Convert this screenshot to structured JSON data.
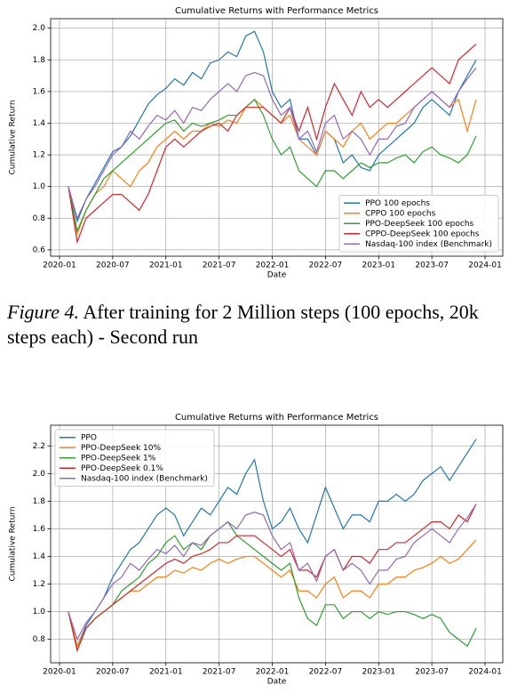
{
  "chart_data": [
    {
      "type": "line",
      "title": "Cumulative Returns with Performance Metrics",
      "xlabel": "Date",
      "ylabel": "Cumulative Return",
      "x": [
        "2020-02",
        "2020-03",
        "2020-04",
        "2020-05",
        "2020-06",
        "2020-07",
        "2020-08",
        "2020-09",
        "2020-10",
        "2020-11",
        "2020-12",
        "2021-01",
        "2021-02",
        "2021-03",
        "2021-04",
        "2021-05",
        "2021-06",
        "2021-07",
        "2021-08",
        "2021-09",
        "2021-10",
        "2021-11",
        "2021-12",
        "2022-01",
        "2022-02",
        "2022-03",
        "2022-04",
        "2022-05",
        "2022-06",
        "2022-07",
        "2022-08",
        "2022-09",
        "2022-10",
        "2022-11",
        "2022-12",
        "2023-01",
        "2023-02",
        "2023-03",
        "2023-04",
        "2023-05",
        "2023-06",
        "2023-07",
        "2023-08",
        "2023-09",
        "2023-10",
        "2023-11",
        "2023-12"
      ],
      "xlim": [
        "2019-12",
        "2024-03"
      ],
      "xticks": [
        "2020-01",
        "2020-07",
        "2021-01",
        "2021-07",
        "2022-01",
        "2022-07",
        "2023-01",
        "2023-07",
        "2024-01"
      ],
      "ylim": [
        0.56,
        2.06
      ],
      "yticks": [
        0.6,
        0.8,
        {
          "value": 1,
          "label": "1.0"
        },
        1.2,
        1.4,
        1.6,
        1.8,
        {
          "value": 2,
          "label": "2.0"
        }
      ],
      "grid": true,
      "legend": "lower right",
      "series": [
        {
          "name": "PPO 100 epochs",
          "color": "#1f77b4",
          "values": [
            1.0,
            0.78,
            0.92,
            1.02,
            1.12,
            1.22,
            1.25,
            1.32,
            1.42,
            1.52,
            1.58,
            1.62,
            1.68,
            1.64,
            1.72,
            1.68,
            1.78,
            1.8,
            1.85,
            1.82,
            1.95,
            1.98,
            1.85,
            1.6,
            1.5,
            1.55,
            1.3,
            1.3,
            1.2,
            1.35,
            1.3,
            1.15,
            1.2,
            1.12,
            1.1,
            1.2,
            1.25,
            1.3,
            1.35,
            1.4,
            1.5,
            1.55,
            1.5,
            1.45,
            1.6,
            1.7,
            1.8
          ]
        },
        {
          "name": "CPPO 100 epochs",
          "color": "#ff7f0e",
          "values": [
            1.0,
            0.7,
            0.85,
            0.95,
            1.0,
            1.1,
            1.05,
            1.0,
            1.1,
            1.15,
            1.25,
            1.3,
            1.35,
            1.3,
            1.35,
            1.35,
            1.4,
            1.38,
            1.42,
            1.4,
            1.5,
            1.55,
            1.5,
            1.45,
            1.4,
            1.45,
            1.3,
            1.25,
            1.2,
            1.35,
            1.3,
            1.25,
            1.35,
            1.4,
            1.3,
            1.35,
            1.4,
            1.4,
            1.45,
            1.5,
            1.55,
            1.6,
            1.55,
            1.5,
            1.55,
            1.35,
            1.55
          ]
        },
        {
          "name": "PPO-DeepSeek 100 epochs",
          "color": "#2ca02c",
          "values": [
            1.0,
            0.72,
            0.85,
            0.95,
            1.05,
            1.1,
            1.15,
            1.2,
            1.25,
            1.3,
            1.35,
            1.4,
            1.42,
            1.35,
            1.4,
            1.38,
            1.4,
            1.42,
            1.45,
            1.45,
            1.5,
            1.55,
            1.45,
            1.3,
            1.2,
            1.25,
            1.1,
            1.05,
            1.0,
            1.1,
            1.1,
            1.05,
            1.1,
            1.15,
            1.12,
            1.15,
            1.15,
            1.18,
            1.2,
            1.15,
            1.22,
            1.25,
            1.2,
            1.18,
            1.15,
            1.2,
            1.32
          ]
        },
        {
          "name": "CPPO-DeepSeek 100 epochs",
          "color": "#d62728",
          "values": [
            1.0,
            0.65,
            0.8,
            0.85,
            0.9,
            0.95,
            0.95,
            0.9,
            0.85,
            0.95,
            1.1,
            1.25,
            1.3,
            1.25,
            1.3,
            1.35,
            1.38,
            1.4,
            1.35,
            1.45,
            1.5,
            1.5,
            1.5,
            1.45,
            1.4,
            1.5,
            1.35,
            1.5,
            1.3,
            1.5,
            1.65,
            1.55,
            1.45,
            1.6,
            1.5,
            1.55,
            1.5,
            1.55,
            1.6,
            1.65,
            1.7,
            1.75,
            1.7,
            1.65,
            1.8,
            1.85,
            1.9
          ]
        },
        {
          "name": "Nasdaq-100 index (Benchmark)",
          "color": "#9467bd",
          "values": [
            1.0,
            0.8,
            0.92,
            1.0,
            1.1,
            1.2,
            1.25,
            1.35,
            1.3,
            1.38,
            1.45,
            1.42,
            1.48,
            1.4,
            1.5,
            1.48,
            1.55,
            1.6,
            1.65,
            1.6,
            1.7,
            1.72,
            1.7,
            1.55,
            1.45,
            1.5,
            1.3,
            1.35,
            1.22,
            1.4,
            1.45,
            1.3,
            1.35,
            1.3,
            1.2,
            1.3,
            1.3,
            1.38,
            1.4,
            1.5,
            1.55,
            1.6,
            1.55,
            1.5,
            1.6,
            1.68,
            1.75
          ]
        }
      ]
    },
    {
      "type": "line",
      "title": "Cumulative Returns with Performance Metrics",
      "xlabel": "Date",
      "ylabel": "Cumulative Return",
      "x": [
        "2020-02",
        "2020-03",
        "2020-04",
        "2020-05",
        "2020-06",
        "2020-07",
        "2020-08",
        "2020-09",
        "2020-10",
        "2020-11",
        "2020-12",
        "2021-01",
        "2021-02",
        "2021-03",
        "2021-04",
        "2021-05",
        "2021-06",
        "2021-07",
        "2021-08",
        "2021-09",
        "2021-10",
        "2021-11",
        "2021-12",
        "2022-01",
        "2022-02",
        "2022-03",
        "2022-04",
        "2022-05",
        "2022-06",
        "2022-07",
        "2022-08",
        "2022-09",
        "2022-10",
        "2022-11",
        "2022-12",
        "2023-01",
        "2023-02",
        "2023-03",
        "2023-04",
        "2023-05",
        "2023-06",
        "2023-07",
        "2023-08",
        "2023-09",
        "2023-10",
        "2023-11",
        "2023-12"
      ],
      "xlim": [
        "2019-12",
        "2024-03"
      ],
      "xticks": [
        "2020-01",
        "2020-07",
        "2021-01",
        "2021-07",
        "2022-01",
        "2022-07",
        "2023-01",
        "2023-07",
        "2024-01"
      ],
      "ylim": [
        0.63,
        2.35
      ],
      "yticks": [
        0.8,
        {
          "value": 1,
          "label": "1.0"
        },
        1.2,
        1.4,
        1.6,
        1.8,
        {
          "value": 2,
          "label": "2.0"
        },
        2.2
      ],
      "grid": true,
      "legend": "upper left",
      "series": [
        {
          "name": "PPO",
          "color": "#1f77b4",
          "values": [
            1.0,
            0.75,
            0.9,
            1.0,
            1.1,
            1.25,
            1.35,
            1.45,
            1.5,
            1.6,
            1.7,
            1.75,
            1.7,
            1.55,
            1.65,
            1.75,
            1.7,
            1.8,
            1.9,
            1.85,
            2.0,
            2.1,
            1.8,
            1.6,
            1.65,
            1.75,
            1.6,
            1.5,
            1.7,
            1.9,
            1.75,
            1.6,
            1.7,
            1.7,
            1.65,
            1.8,
            1.8,
            1.85,
            1.8,
            1.85,
            1.95,
            2.0,
            2.05,
            1.95,
            2.05,
            2.15,
            2.25
          ]
        },
        {
          "name": "PPO-DeepSeek 10%",
          "color": "#ff7f0e",
          "values": [
            1.0,
            0.75,
            0.88,
            0.95,
            1.0,
            1.05,
            1.1,
            1.15,
            1.15,
            1.2,
            1.25,
            1.25,
            1.3,
            1.28,
            1.32,
            1.3,
            1.35,
            1.38,
            1.35,
            1.38,
            1.4,
            1.4,
            1.35,
            1.3,
            1.25,
            1.3,
            1.15,
            1.15,
            1.1,
            1.2,
            1.25,
            1.1,
            1.15,
            1.15,
            1.1,
            1.2,
            1.2,
            1.25,
            1.25,
            1.3,
            1.32,
            1.35,
            1.4,
            1.35,
            1.38,
            1.45,
            1.52
          ]
        },
        {
          "name": "PPO-DeepSeek 1%",
          "color": "#2ca02c",
          "values": [
            1.0,
            0.72,
            0.88,
            0.95,
            1.0,
            1.05,
            1.15,
            1.2,
            1.25,
            1.35,
            1.4,
            1.5,
            1.55,
            1.45,
            1.5,
            1.45,
            1.55,
            1.6,
            1.65,
            1.55,
            1.5,
            1.45,
            1.4,
            1.35,
            1.3,
            1.35,
            1.1,
            0.95,
            0.9,
            1.05,
            1.05,
            0.95,
            1.0,
            1.0,
            0.95,
            1.0,
            0.98,
            1.0,
            1.0,
            0.98,
            0.95,
            0.98,
            0.95,
            0.85,
            0.8,
            0.75,
            0.88
          ]
        },
        {
          "name": "PPO-DeepSeek 0.1%",
          "color": "#d62728",
          "values": [
            1.0,
            0.72,
            0.88,
            0.95,
            1.0,
            1.05,
            1.1,
            1.15,
            1.2,
            1.25,
            1.3,
            1.35,
            1.38,
            1.35,
            1.4,
            1.42,
            1.45,
            1.5,
            1.5,
            1.55,
            1.55,
            1.55,
            1.5,
            1.45,
            1.4,
            1.45,
            1.3,
            1.3,
            1.25,
            1.4,
            1.45,
            1.3,
            1.4,
            1.4,
            1.35,
            1.45,
            1.45,
            1.5,
            1.5,
            1.55,
            1.6,
            1.65,
            1.65,
            1.6,
            1.7,
            1.65,
            1.78
          ]
        },
        {
          "name": "Nasdaq-100 index (Benchmark)",
          "color": "#9467bd",
          "values": [
            1.0,
            0.8,
            0.92,
            1.0,
            1.1,
            1.2,
            1.25,
            1.35,
            1.3,
            1.38,
            1.45,
            1.42,
            1.48,
            1.4,
            1.5,
            1.48,
            1.55,
            1.6,
            1.65,
            1.6,
            1.7,
            1.72,
            1.7,
            1.55,
            1.45,
            1.5,
            1.3,
            1.35,
            1.22,
            1.4,
            1.45,
            1.3,
            1.35,
            1.3,
            1.2,
            1.3,
            1.3,
            1.38,
            1.4,
            1.5,
            1.55,
            1.6,
            1.55,
            1.5,
            1.6,
            1.68,
            1.78
          ]
        }
      ]
    }
  ],
  "caption": {
    "label": "Figure 4.",
    "text": "After training for 2 Million steps (100 epochs, 20k steps each) - Second run"
  }
}
